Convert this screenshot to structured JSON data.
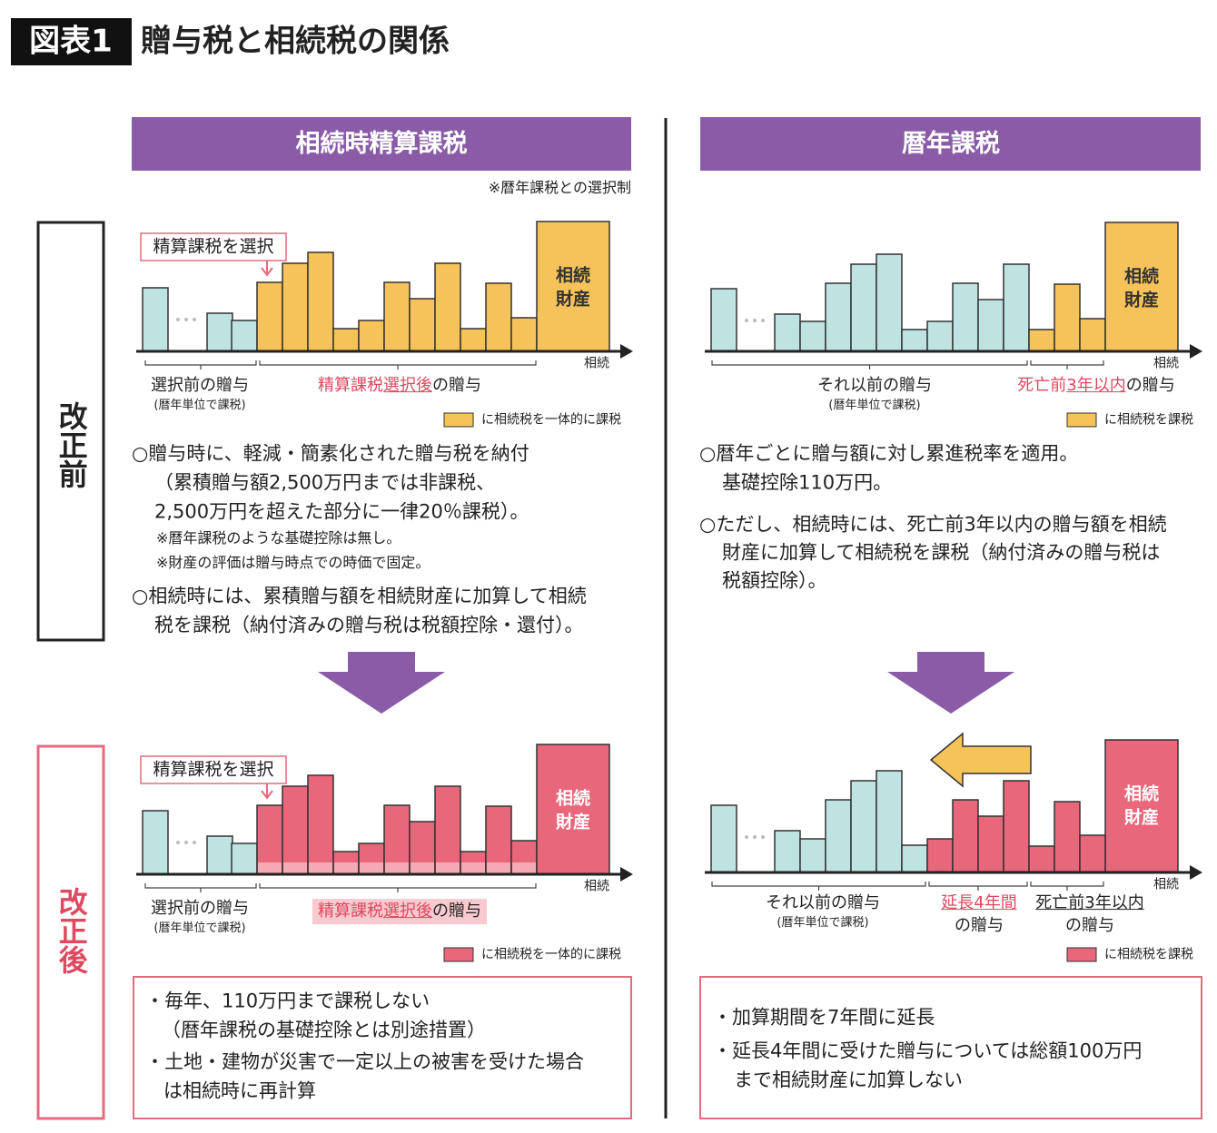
{
  "header": {
    "badge": "図表1",
    "title": "贈与税と相続税の関係"
  },
  "columns": [
    {
      "title": "相続時精算課税",
      "note": "※暦年課税との選択制"
    },
    {
      "title": "暦年課税"
    }
  ],
  "rows": [
    "改正前",
    "改正後"
  ],
  "panels": {
    "left_before": {
      "callout": "精算課税を選択",
      "estate": [
        "相続",
        "財産"
      ],
      "axis": "相続",
      "groups": [
        {
          "label": [
            "選択前の贈与"
          ],
          "sub": "(暦年単位で課税)"
        },
        {
          "label": [
            "精算課税",
            "選択後",
            "の贈与"
          ]
        }
      ],
      "legend": "に相続税を一体的に課税",
      "text": [
        "○贈与時に、軽減・簡素化された贈与税を納付",
        "（累積贈与額2,500万円までは非課税、",
        "2,500万円を超えた部分に一律20％課税）。",
        "※暦年課税のような基礎控除は無し。",
        "※財産の評価は贈与時点での時価で固定。",
        "○相続時には、累積贈与額を相続財産に加算して相続",
        "税を課税（納付済みの贈与税は税額控除・還付）。"
      ]
    },
    "right_before": {
      "estate": [
        "相続",
        "財産"
      ],
      "axis": "相続",
      "groups": [
        {
          "label": [
            "それ以前の贈与"
          ],
          "sub": "(暦年単位で課税)"
        },
        {
          "label": [
            "死亡前",
            "3年以内",
            "の贈与"
          ]
        }
      ],
      "legend": "に相続税を課税",
      "text": [
        "○暦年ごとに贈与額に対し累進税率を適用。",
        "基礎控除110万円。",
        "○ただし、相続時には、死亡前3年以内の贈与額を相続",
        "財産に加算して相続税を課税（納付済みの贈与税は",
        "税額控除）。"
      ]
    },
    "left_after": {
      "callout": "精算課税を選択",
      "estate": [
        "相続",
        "財産"
      ],
      "axis": "相続",
      "groups": [
        {
          "label": [
            "選択前の贈与"
          ],
          "sub": "(暦年単位で課税)"
        },
        {
          "label": [
            "精算課税",
            "選択後",
            "の贈与"
          ]
        }
      ],
      "legend": "に相続税を一体的に課税",
      "text": [
        "・毎年、110万円まで課税しない",
        "（暦年課税の基礎控除とは別途措置）",
        "・土地・建物が災害で一定以上の被害を受けた場合",
        "は相続時に再計算"
      ]
    },
    "right_after": {
      "estate": [
        "相続",
        "財産"
      ],
      "axis": "相続",
      "groups": [
        {
          "label": [
            "それ以前の贈与"
          ],
          "sub": "(暦年単位で課税)"
        },
        {
          "label": [
            "延長4年間"
          ],
          "sub": "の贈与"
        },
        {
          "label": [
            "死亡前3年以内"
          ],
          "sub": "の贈与"
        }
      ],
      "legend": "に相続税を課税",
      "text": [
        "・加算期間を7年間に延長",
        "・延長4年間に受けた贈与については総額100万円",
        "まで相続財産に加算しない"
      ]
    }
  }
}
